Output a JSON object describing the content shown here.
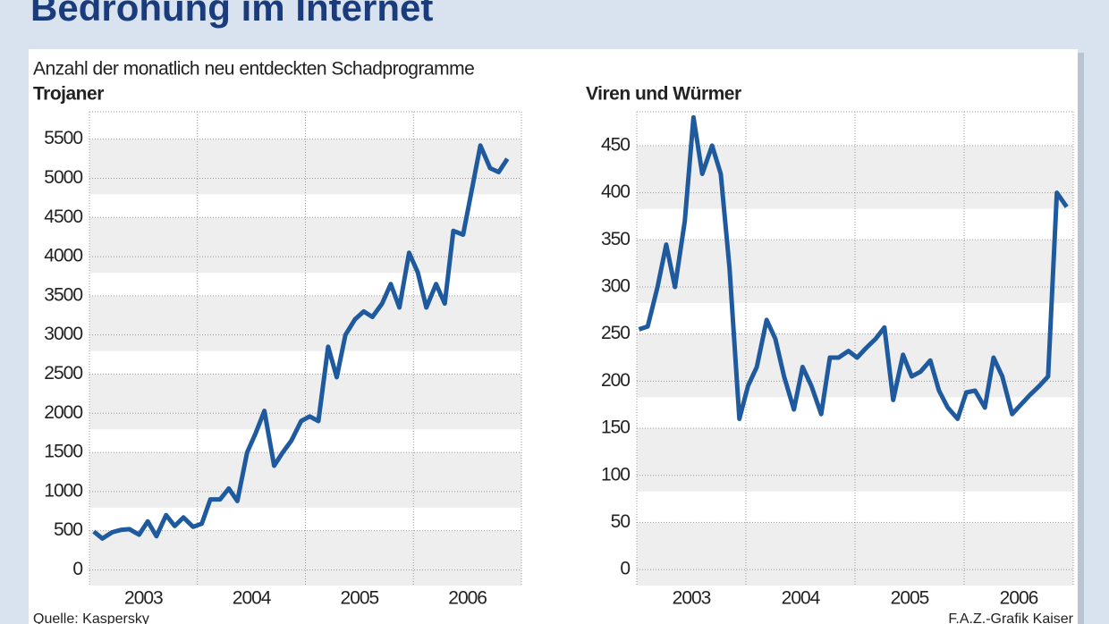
{
  "title": "Bedrohung im Internet",
  "subtitle": "Anzahl der monatlich neu entdeckten Schadprogramme",
  "source": "Quelle: Kaspersky",
  "credit": "F.A.Z.-Grafik Kaiser",
  "chart_data": [
    {
      "type": "line",
      "title": "Trojaner",
      "x": [
        2003.04,
        2003.12,
        2003.21,
        2003.29,
        2003.37,
        2003.46,
        2003.54,
        2003.62,
        2003.71,
        2003.79,
        2003.87,
        2003.96,
        2004.04,
        2004.12,
        2004.21,
        2004.29,
        2004.37,
        2004.46,
        2004.54,
        2004.62,
        2004.71,
        2004.79,
        2004.87,
        2004.96,
        2005.04,
        2005.12,
        2005.21,
        2005.29,
        2005.37,
        2005.46,
        2005.54,
        2005.62,
        2005.71,
        2005.79,
        2005.87,
        2005.96,
        2006.04,
        2006.12,
        2006.21,
        2006.29,
        2006.37,
        2006.46,
        2006.54,
        2006.62,
        2006.71,
        2006.79,
        2006.87
      ],
      "series": [
        {
          "color": "#1f5a9e",
          "values": [
            490,
            400,
            480,
            510,
            520,
            450,
            620,
            430,
            700,
            560,
            670,
            550,
            590,
            900,
            900,
            1040,
            880,
            1500,
            1750,
            2030,
            1330,
            1500,
            1650,
            1900,
            1960,
            1900,
            2850,
            2460,
            3000,
            3200,
            3300,
            3230,
            3400,
            3650,
            3350,
            4050,
            3800,
            3350,
            3650,
            3400,
            4330,
            4280,
            4850,
            5420,
            5130,
            5080,
            5250
          ]
        }
      ],
      "xlim": [
        2003,
        2007
      ],
      "xticks": [
        {
          "value": 2003.5,
          "label": "2003"
        },
        {
          "value": 2004.5,
          "label": "2004"
        },
        {
          "value": 2005.5,
          "label": "2005"
        },
        {
          "value": 2006.5,
          "label": "2006"
        }
      ],
      "xgrid": [
        2003,
        2004,
        2005,
        2006,
        2007
      ],
      "ylim": [
        -200,
        5850
      ],
      "yticks": [
        0,
        500,
        1000,
        1500,
        2000,
        2500,
        3000,
        3500,
        4000,
        4500,
        5000,
        5500
      ],
      "grid": true
    },
    {
      "type": "line",
      "title": "Viren und Würmer",
      "x": [
        2003.02,
        2003.1,
        2003.19,
        2003.27,
        2003.35,
        2003.44,
        2003.52,
        2003.6,
        2003.69,
        2003.77,
        2003.85,
        2003.94,
        2004.02,
        2004.1,
        2004.19,
        2004.27,
        2004.35,
        2004.44,
        2004.52,
        2004.6,
        2004.69,
        2004.77,
        2004.85,
        2004.94,
        2005.02,
        2005.1,
        2005.19,
        2005.27,
        2005.35,
        2005.44,
        2005.52,
        2005.6,
        2005.69,
        2005.77,
        2005.85,
        2005.94,
        2006.02,
        2006.1,
        2006.19,
        2006.27,
        2006.35,
        2006.44,
        2006.52,
        2006.6,
        2006.69,
        2006.77,
        2006.85,
        2006.94
      ],
      "series": [
        {
          "color": "#1f5a9e",
          "values": [
            255,
            258,
            300,
            345,
            300,
            370,
            480,
            420,
            450,
            420,
            320,
            160,
            195,
            215,
            265,
            245,
            205,
            170,
            215,
            195,
            165,
            225,
            225,
            232,
            225,
            235,
            245,
            257,
            180,
            228,
            205,
            210,
            222,
            190,
            172,
            160,
            188,
            190,
            172,
            225,
            205,
            165,
            175,
            185,
            195,
            205,
            400,
            385
          ]
        }
      ],
      "xlim": [
        2003,
        2007
      ],
      "xticks": [
        {
          "value": 2003.5,
          "label": "2003"
        },
        {
          "value": 2004.5,
          "label": "2004"
        },
        {
          "value": 2005.5,
          "label": "2005"
        },
        {
          "value": 2006.5,
          "label": "2006"
        }
      ],
      "xgrid": [
        2003,
        2004,
        2005,
        2006,
        2007
      ],
      "ylim": [
        -17,
        486
      ],
      "yticks": [
        0,
        50,
        100,
        150,
        200,
        250,
        300,
        350,
        400,
        450
      ],
      "grid": true
    }
  ]
}
